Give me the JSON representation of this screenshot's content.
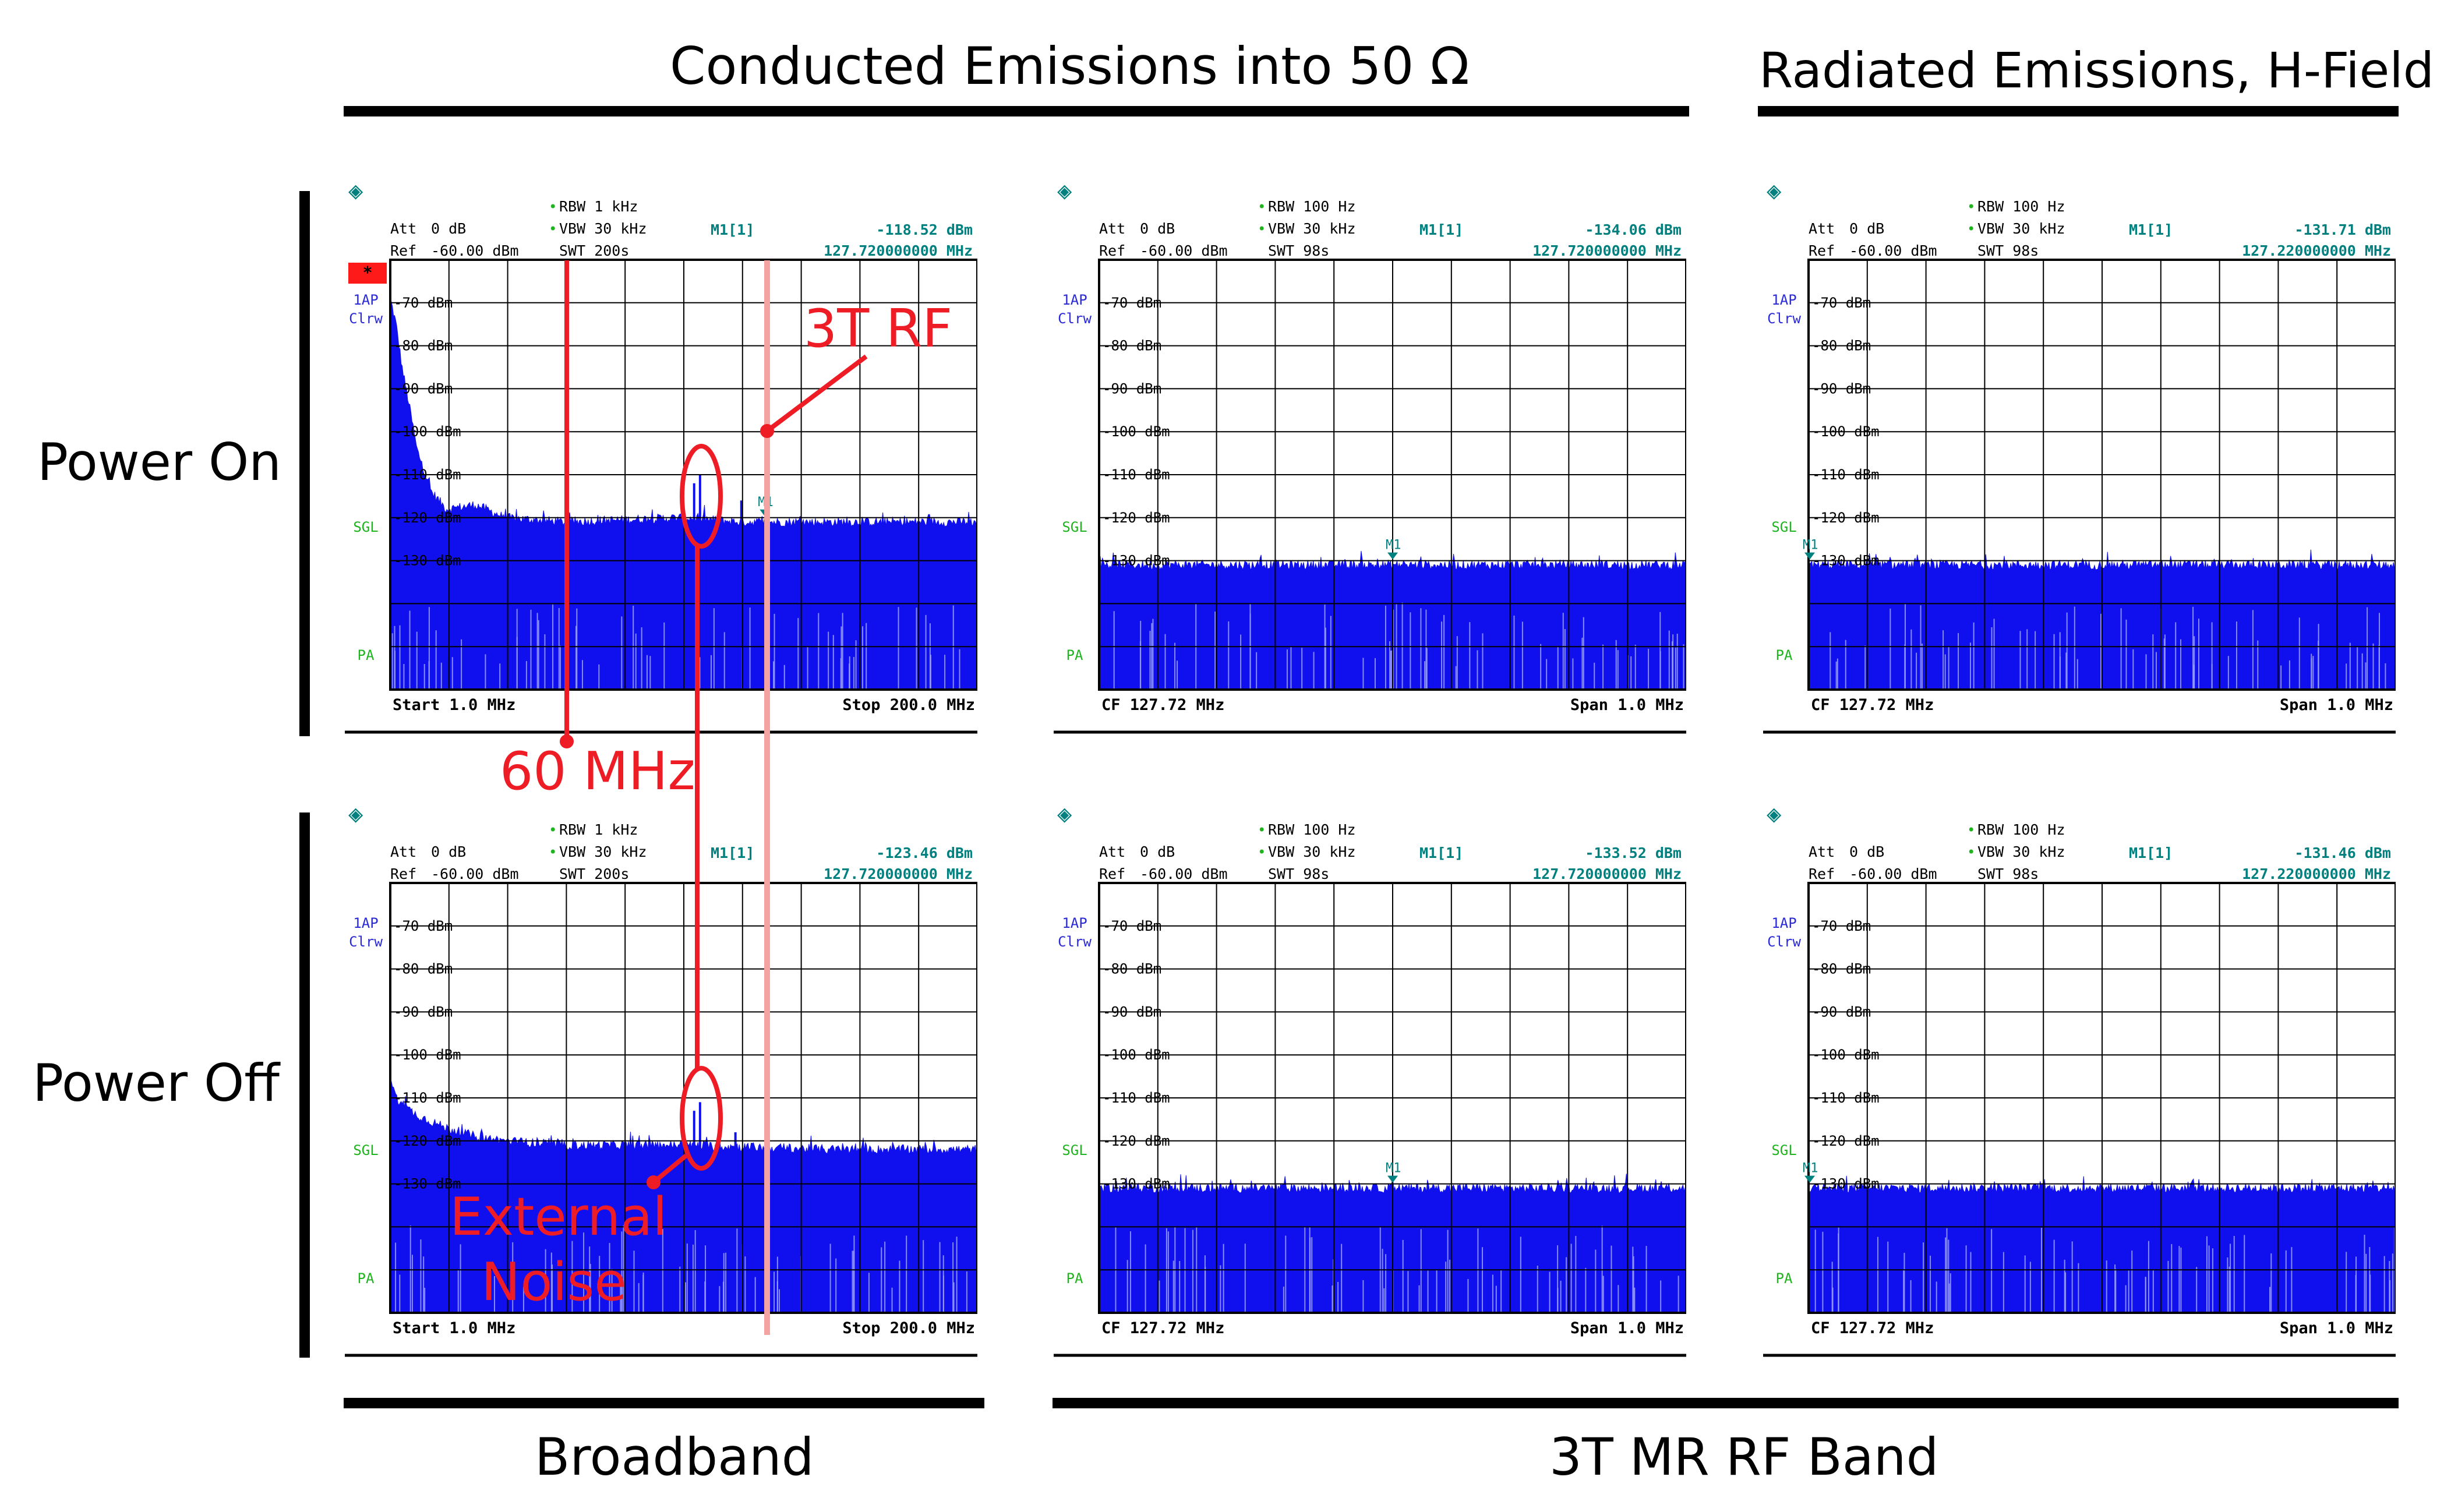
{
  "headers": {
    "conducted": "Conducted Emissions into 50 Ω",
    "radiated": "Radiated Emissions, H-Field",
    "broadband": "Broadband",
    "rf_band": "3T MR RF Band"
  },
  "rows": {
    "power_on": "Power On",
    "power_off": "Power Off"
  },
  "annotations": {
    "rf": "3T RF",
    "freq60": "60 MHz",
    "ext1": "External",
    "ext2": "Noise"
  },
  "colors": {
    "trace": "#1010ee",
    "annotation": "#ee1c25",
    "rf_line": "#f4a3a3",
    "marker_readout": "#00807e",
    "trace_label": "#2a2ad6",
    "status_green": "#1fb41f",
    "grid": "#000000"
  },
  "icons": {
    "logo": "rohde-schwarz-diamond-icon",
    "flag": "red-flag-icon"
  },
  "chart_data": [
    {
      "id": "on-broadband",
      "type": "area",
      "mode": "broadband",
      "logo": "◈",
      "flag": "*",
      "att_label": "Att",
      "att_value": "0 dB",
      "ref_label": "Ref",
      "ref_value": "-60.00 dBm",
      "rbw": "RBW 1 kHz",
      "vbw": "VBW 30 kHz",
      "swt": "SWT 200s",
      "marker_label": "M1[1]",
      "marker_level": "-118.52 dBm",
      "marker_freq": "127.720000000 MHz",
      "trace_label": "1AP",
      "trace_mode": "Clrw",
      "sgl": "SGL",
      "pa": "PA",
      "bottom_left": "Start 1.0 MHz",
      "bottom_right": "Stop 200.0 MHz",
      "y_ticks": [
        "-70 dBm",
        "-80 dBm",
        "-90 dBm",
        "-100 dBm",
        "-110 dBm",
        "-120 dBm",
        "-130 dBm"
      ],
      "marker_tag": "M1",
      "x_range_mhz": [
        1.0,
        200.0
      ],
      "y_range_dbm": [
        -160,
        -60
      ],
      "noise_floor_dbm": -121,
      "spectrum_mhz_dbm": [
        [
          1,
          -69
        ],
        [
          3,
          -75
        ],
        [
          5,
          -85
        ],
        [
          8,
          -96
        ],
        [
          10,
          -104
        ],
        [
          15,
          -114
        ],
        [
          20,
          -118
        ],
        [
          30,
          -117
        ],
        [
          40,
          -120
        ],
        [
          60,
          -121
        ],
        [
          100,
          -120
        ],
        [
          120,
          -121
        ],
        [
          150,
          -121
        ],
        [
          200,
          -121
        ]
      ],
      "peaks_mhz_dbm": [
        [
          104,
          -112
        ],
        [
          106,
          -110
        ],
        [
          120,
          -116
        ]
      ]
    },
    {
      "id": "on-rf-conducted",
      "type": "area",
      "mode": "narrow",
      "logo": "◈",
      "flag": "",
      "att_label": "Att",
      "att_value": "0 dB",
      "ref_label": "Ref",
      "ref_value": "-60.00 dBm",
      "rbw": "RBW 100 Hz",
      "vbw": "VBW 30 kHz",
      "swt": "SWT 98s",
      "marker_label": "M1[1]",
      "marker_level": "-134.06 dBm",
      "marker_freq": "127.720000000 MHz",
      "trace_label": "1AP",
      "trace_mode": "Clrw",
      "sgl": "SGL",
      "pa": "PA",
      "bottom_left": "CF 127.72 MHz",
      "bottom_right": "Span 1.0 MHz",
      "y_ticks": [
        "-70 dBm",
        "-80 dBm",
        "-90 dBm",
        "-100 dBm",
        "-110 dBm",
        "-120 dBm",
        "-130 dBm"
      ],
      "marker_tag": "M1",
      "marker_mhz": 127.72,
      "x_range_mhz": [
        127.22,
        128.22
      ],
      "y_range_dbm": [
        -160,
        -60
      ],
      "noise_floor_dbm": -131
    },
    {
      "id": "on-rf-radiated",
      "type": "area",
      "mode": "narrow",
      "logo": "◈",
      "flag": "",
      "att_label": "Att",
      "att_value": "0 dB",
      "ref_label": "Ref",
      "ref_value": "-60.00 dBm",
      "rbw": "RBW 100 Hz",
      "vbw": "VBW 30 kHz",
      "swt": "SWT 98s",
      "marker_label": "M1[1]",
      "marker_level": "-131.71 dBm",
      "marker_freq": "127.220000000 MHz",
      "trace_label": "1AP",
      "trace_mode": "Clrw",
      "sgl": "SGL",
      "pa": "PA",
      "bottom_left": "CF 127.72 MHz",
      "bottom_right": "Span 1.0 MHz",
      "y_ticks": [
        "-70 dBm",
        "-80 dBm",
        "-90 dBm",
        "-100 dBm",
        "-110 dBm",
        "-120 dBm",
        "-130 dBm"
      ],
      "marker_tag": "M1",
      "marker_mhz": 127.22,
      "x_range_mhz": [
        127.22,
        128.22
      ],
      "y_range_dbm": [
        -160,
        -60
      ],
      "noise_floor_dbm": -131
    },
    {
      "id": "off-broadband",
      "type": "area",
      "mode": "broadband",
      "logo": "◈",
      "flag": "",
      "att_label": "Att",
      "att_value": "0 dB",
      "ref_label": "Ref",
      "ref_value": "-60.00 dBm",
      "rbw": "RBW 1 kHz",
      "vbw": "VBW 30 kHz",
      "swt": "SWT 200s",
      "marker_label": "M1[1]",
      "marker_level": "-123.46 dBm",
      "marker_freq": "127.720000000 MHz",
      "trace_label": "1AP",
      "trace_mode": "Clrw",
      "sgl": "SGL",
      "pa": "PA",
      "bottom_left": "Start 1.0 MHz",
      "bottom_right": "Stop 200.0 MHz",
      "y_ticks": [
        "-70 dBm",
        "-80 dBm",
        "-90 dBm",
        "-100 dBm",
        "-110 dBm",
        "-120 dBm",
        "-130 dBm"
      ],
      "marker_tag": "",
      "x_range_mhz": [
        1.0,
        200.0
      ],
      "y_range_dbm": [
        -160,
        -60
      ],
      "noise_floor_dbm": -122,
      "spectrum_mhz_dbm": [
        [
          1,
          -105
        ],
        [
          3,
          -110
        ],
        [
          6,
          -112
        ],
        [
          10,
          -114
        ],
        [
          20,
          -117
        ],
        [
          30,
          -119
        ],
        [
          40,
          -120
        ],
        [
          60,
          -121
        ],
        [
          100,
          -121
        ],
        [
          150,
          -122
        ],
        [
          200,
          -122
        ]
      ],
      "peaks_mhz_dbm": [
        [
          104,
          -113
        ],
        [
          106,
          -111
        ],
        [
          118,
          -118
        ]
      ]
    },
    {
      "id": "off-rf-conducted",
      "type": "area",
      "mode": "narrow",
      "logo": "◈",
      "flag": "",
      "att_label": "Att",
      "att_value": "0 dB",
      "ref_label": "Ref",
      "ref_value": "-60.00 dBm",
      "rbw": "RBW 100 Hz",
      "vbw": "VBW 30 kHz",
      "swt": "SWT 98s",
      "marker_label": "M1[1]",
      "marker_level": "-133.52 dBm",
      "marker_freq": "127.720000000 MHz",
      "trace_label": "1AP",
      "trace_mode": "Clrw",
      "sgl": "SGL",
      "pa": "PA",
      "bottom_left": "CF 127.72 MHz",
      "bottom_right": "Span 1.0 MHz",
      "y_ticks": [
        "-70 dBm",
        "-80 dBm",
        "-90 dBm",
        "-100 dBm",
        "-110 dBm",
        "-120 dBm",
        "-130 dBm"
      ],
      "marker_tag": "M1",
      "marker_mhz": 127.72,
      "x_range_mhz": [
        127.22,
        128.22
      ],
      "y_range_dbm": [
        -160,
        -60
      ],
      "noise_floor_dbm": -131
    },
    {
      "id": "off-rf-radiated",
      "type": "area",
      "mode": "narrow",
      "logo": "◈",
      "flag": "",
      "att_label": "Att",
      "att_value": "0 dB",
      "ref_label": "Ref",
      "ref_value": "-60.00 dBm",
      "rbw": "RBW 100 Hz",
      "vbw": "VBW 30 kHz",
      "swt": "SWT 98s",
      "marker_label": "M1[1]",
      "marker_level": "-131.46 dBm",
      "marker_freq": "127.220000000 MHz",
      "trace_label": "1AP",
      "trace_mode": "Clrw",
      "sgl": "SGL",
      "pa": "PA",
      "bottom_left": "CF 127.72 MHz",
      "bottom_right": "Span 1.0 MHz",
      "y_ticks": [
        "-70 dBm",
        "-80 dBm",
        "-90 dBm",
        "-100 dBm",
        "-110 dBm",
        "-120 dBm",
        "-130 dBm"
      ],
      "marker_tag": "M1",
      "marker_mhz": 127.22,
      "x_range_mhz": [
        127.22,
        128.22
      ],
      "y_range_dbm": [
        -160,
        -60
      ],
      "noise_floor_dbm": -131
    }
  ]
}
